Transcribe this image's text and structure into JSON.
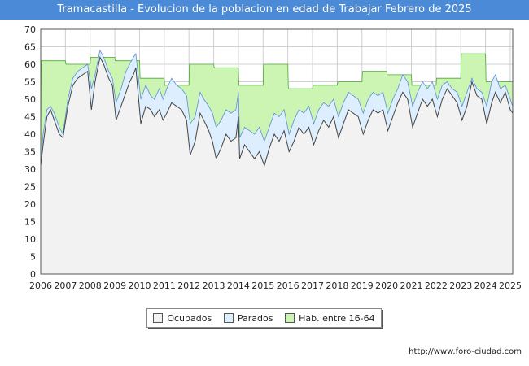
{
  "header": {
    "title": "Tramacastilla - Evolucion de la poblacion en edad de Trabajar Febrero de 2025"
  },
  "footer": {
    "source": "http://www.foro-ciudad.com"
  },
  "colors": {
    "ocupados": "#f2f2f2",
    "parados": "#ddeeff",
    "hab": "#ccf5b4",
    "line": "#444444"
  },
  "chart_data": {
    "type": "area",
    "title": "Tramacastilla - Evolucion de la poblacion en edad de Trabajar Febrero de 2025",
    "ylim": [
      0,
      70
    ],
    "yticks": [
      0,
      5,
      10,
      15,
      20,
      25,
      30,
      35,
      40,
      45,
      50,
      55,
      60,
      65,
      70
    ],
    "xlim": [
      2006,
      2025.1
    ],
    "xticks": [
      "2006",
      "2007",
      "2008",
      "2009",
      "2010",
      "2011",
      "2012",
      "2013",
      "2014",
      "2015",
      "2016",
      "2017",
      "2018",
      "2019",
      "2020",
      "2021",
      "2022",
      "2023",
      "2024",
      "2025"
    ],
    "grid": true,
    "legend": "bottom-center",
    "legend_labels": [
      "Ocupados",
      "Parados",
      "Hab. entre 16-64"
    ],
    "series": [
      {
        "name": "Hab. entre 16-64",
        "points": [
          [
            2006.0,
            36
          ],
          [
            2006.02,
            61
          ],
          [
            2007.0,
            61
          ],
          [
            2007.02,
            60
          ],
          [
            2008.0,
            60
          ],
          [
            2008.02,
            62
          ],
          [
            2009.0,
            62
          ],
          [
            2009.02,
            61
          ],
          [
            2010.0,
            61
          ],
          [
            2010.02,
            56
          ],
          [
            2011.0,
            56
          ],
          [
            2011.02,
            54
          ],
          [
            2012.0,
            54
          ],
          [
            2012.02,
            60
          ],
          [
            2013.0,
            60
          ],
          [
            2013.02,
            59
          ],
          [
            2014.0,
            59
          ],
          [
            2014.02,
            54
          ],
          [
            2015.0,
            54
          ],
          [
            2015.02,
            60
          ],
          [
            2016.0,
            60
          ],
          [
            2016.02,
            53
          ],
          [
            2017.0,
            53
          ],
          [
            2017.02,
            54
          ],
          [
            2018.0,
            54
          ],
          [
            2018.02,
            55
          ],
          [
            2019.0,
            55
          ],
          [
            2019.02,
            58
          ],
          [
            2020.0,
            58
          ],
          [
            2020.02,
            57
          ],
          [
            2021.0,
            57
          ],
          [
            2021.02,
            54
          ],
          [
            2022.0,
            54
          ],
          [
            2022.02,
            56
          ],
          [
            2023.0,
            56
          ],
          [
            2023.02,
            63
          ],
          [
            2024.0,
            63
          ],
          [
            2024.02,
            55
          ],
          [
            2025.0,
            55
          ],
          [
            2025.1,
            55
          ]
        ]
      },
      {
        "name": "Parados",
        "points": [
          [
            2006.0,
            32
          ],
          [
            2006.1,
            40
          ],
          [
            2006.25,
            47
          ],
          [
            2006.4,
            48
          ],
          [
            2006.55,
            46
          ],
          [
            2006.75,
            42
          ],
          [
            2006.9,
            40
          ],
          [
            2007.1,
            50
          ],
          [
            2007.3,
            56
          ],
          [
            2007.5,
            58
          ],
          [
            2007.7,
            59
          ],
          [
            2007.9,
            60
          ],
          [
            2008.05,
            53
          ],
          [
            2008.2,
            57
          ],
          [
            2008.4,
            64
          ],
          [
            2008.55,
            62
          ],
          [
            2008.75,
            58
          ],
          [
            2008.9,
            56
          ],
          [
            2009.05,
            49
          ],
          [
            2009.25,
            53
          ],
          [
            2009.45,
            58
          ],
          [
            2009.6,
            60
          ],
          [
            2009.75,
            62
          ],
          [
            2009.85,
            63
          ],
          [
            2010.05,
            50
          ],
          [
            2010.25,
            54
          ],
          [
            2010.45,
            51
          ],
          [
            2010.6,
            50
          ],
          [
            2010.8,
            53
          ],
          [
            2010.95,
            50
          ],
          [
            2011.1,
            53
          ],
          [
            2011.3,
            56
          ],
          [
            2011.5,
            54
          ],
          [
            2011.7,
            53
          ],
          [
            2011.9,
            51
          ],
          [
            2012.05,
            43
          ],
          [
            2012.25,
            45
          ],
          [
            2012.45,
            52
          ],
          [
            2012.6,
            50
          ],
          [
            2012.8,
            48
          ],
          [
            2012.95,
            46
          ],
          [
            2013.1,
            42
          ],
          [
            2013.3,
            44
          ],
          [
            2013.5,
            47
          ],
          [
            2013.7,
            46
          ],
          [
            2013.9,
            47
          ],
          [
            2014.0,
            52
          ],
          [
            2014.05,
            39
          ],
          [
            2014.25,
            42
          ],
          [
            2014.45,
            41
          ],
          [
            2014.65,
            40
          ],
          [
            2014.85,
            42
          ],
          [
            2015.05,
            38
          ],
          [
            2015.25,
            42
          ],
          [
            2015.45,
            46
          ],
          [
            2015.65,
            45
          ],
          [
            2015.85,
            47
          ],
          [
            2016.05,
            40
          ],
          [
            2016.25,
            44
          ],
          [
            2016.45,
            47
          ],
          [
            2016.65,
            46
          ],
          [
            2016.85,
            48
          ],
          [
            2017.05,
            43
          ],
          [
            2017.25,
            47
          ],
          [
            2017.45,
            49
          ],
          [
            2017.65,
            48
          ],
          [
            2017.85,
            50
          ],
          [
            2018.05,
            45
          ],
          [
            2018.25,
            49
          ],
          [
            2018.45,
            52
          ],
          [
            2018.65,
            51
          ],
          [
            2018.85,
            50
          ],
          [
            2019.05,
            46
          ],
          [
            2019.25,
            50
          ],
          [
            2019.45,
            52
          ],
          [
            2019.65,
            51
          ],
          [
            2019.85,
            52
          ],
          [
            2020.05,
            46
          ],
          [
            2020.25,
            50
          ],
          [
            2020.45,
            53
          ],
          [
            2020.65,
            57
          ],
          [
            2020.85,
            55
          ],
          [
            2021.05,
            48
          ],
          [
            2021.25,
            52
          ],
          [
            2021.45,
            55
          ],
          [
            2021.65,
            53
          ],
          [
            2021.85,
            55
          ],
          [
            2022.05,
            50
          ],
          [
            2022.25,
            54
          ],
          [
            2022.45,
            55
          ],
          [
            2022.65,
            53
          ],
          [
            2022.85,
            52
          ],
          [
            2023.05,
            48
          ],
          [
            2023.25,
            52
          ],
          [
            2023.45,
            56
          ],
          [
            2023.65,
            53
          ],
          [
            2023.85,
            52
          ],
          [
            2024.05,
            48
          ],
          [
            2024.25,
            55
          ],
          [
            2024.4,
            57
          ],
          [
            2024.6,
            53
          ],
          [
            2024.8,
            54
          ],
          [
            2025.0,
            50
          ],
          [
            2025.1,
            48
          ]
        ]
      },
      {
        "name": "Ocupados",
        "points": [
          [
            2006.0,
            31
          ],
          [
            2006.1,
            37
          ],
          [
            2006.25,
            45
          ],
          [
            2006.4,
            47
          ],
          [
            2006.55,
            44
          ],
          [
            2006.75,
            40
          ],
          [
            2006.9,
            39
          ],
          [
            2007.1,
            48
          ],
          [
            2007.3,
            54
          ],
          [
            2007.5,
            56
          ],
          [
            2007.7,
            57
          ],
          [
            2007.9,
            58
          ],
          [
            2008.05,
            47
          ],
          [
            2008.2,
            55
          ],
          [
            2008.4,
            62
          ],
          [
            2008.55,
            60
          ],
          [
            2008.75,
            56
          ],
          [
            2008.9,
            54
          ],
          [
            2009.05,
            44
          ],
          [
            2009.25,
            48
          ],
          [
            2009.45,
            52
          ],
          [
            2009.6,
            55
          ],
          [
            2009.75,
            57
          ],
          [
            2009.85,
            59
          ],
          [
            2010.05,
            43
          ],
          [
            2010.25,
            48
          ],
          [
            2010.45,
            47
          ],
          [
            2010.6,
            45
          ],
          [
            2010.8,
            47
          ],
          [
            2010.95,
            44
          ],
          [
            2011.1,
            46
          ],
          [
            2011.3,
            49
          ],
          [
            2011.5,
            48
          ],
          [
            2011.7,
            47
          ],
          [
            2011.9,
            44
          ],
          [
            2012.05,
            34
          ],
          [
            2012.25,
            38
          ],
          [
            2012.45,
            46
          ],
          [
            2012.6,
            44
          ],
          [
            2012.8,
            41
          ],
          [
            2012.95,
            38
          ],
          [
            2013.1,
            33
          ],
          [
            2013.3,
            36
          ],
          [
            2013.5,
            40
          ],
          [
            2013.7,
            38
          ],
          [
            2013.9,
            39
          ],
          [
            2014.0,
            45
          ],
          [
            2014.05,
            33
          ],
          [
            2014.25,
            37
          ],
          [
            2014.45,
            35
          ],
          [
            2014.65,
            33
          ],
          [
            2014.85,
            35
          ],
          [
            2015.05,
            31
          ],
          [
            2015.25,
            36
          ],
          [
            2015.45,
            40
          ],
          [
            2015.65,
            38
          ],
          [
            2015.85,
            41
          ],
          [
            2016.05,
            35
          ],
          [
            2016.25,
            38
          ],
          [
            2016.45,
            42
          ],
          [
            2016.65,
            40
          ],
          [
            2016.85,
            42
          ],
          [
            2017.05,
            37
          ],
          [
            2017.25,
            41
          ],
          [
            2017.45,
            44
          ],
          [
            2017.65,
            42
          ],
          [
            2017.85,
            45
          ],
          [
            2018.05,
            39
          ],
          [
            2018.25,
            43
          ],
          [
            2018.45,
            47
          ],
          [
            2018.65,
            46
          ],
          [
            2018.85,
            45
          ],
          [
            2019.05,
            40
          ],
          [
            2019.25,
            44
          ],
          [
            2019.45,
            47
          ],
          [
            2019.65,
            46
          ],
          [
            2019.85,
            47
          ],
          [
            2020.05,
            41
          ],
          [
            2020.25,
            45
          ],
          [
            2020.45,
            49
          ],
          [
            2020.65,
            52
          ],
          [
            2020.85,
            50
          ],
          [
            2021.05,
            42
          ],
          [
            2021.25,
            46
          ],
          [
            2021.45,
            50
          ],
          [
            2021.65,
            48
          ],
          [
            2021.85,
            50
          ],
          [
            2022.05,
            45
          ],
          [
            2022.25,
            50
          ],
          [
            2022.45,
            53
          ],
          [
            2022.65,
            51
          ],
          [
            2022.85,
            49
          ],
          [
            2023.05,
            44
          ],
          [
            2023.25,
            48
          ],
          [
            2023.45,
            55
          ],
          [
            2023.65,
            51
          ],
          [
            2023.85,
            50
          ],
          [
            2024.05,
            43
          ],
          [
            2024.25,
            49
          ],
          [
            2024.4,
            52
          ],
          [
            2024.6,
            49
          ],
          [
            2024.8,
            52
          ],
          [
            2025.0,
            47
          ],
          [
            2025.1,
            46
          ]
        ]
      }
    ]
  }
}
